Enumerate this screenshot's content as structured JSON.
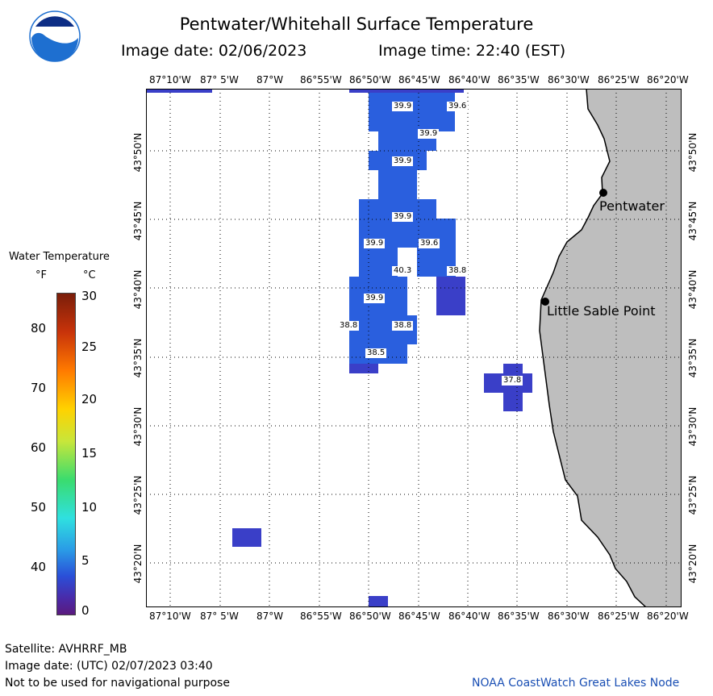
{
  "title": "Pentwater/Whitehall Surface Temperature",
  "image_date_label": "Image date: 02/06/2023",
  "image_time_label": "Image time: 22:40 (EST)",
  "lon_labels": [
    "87°10'W",
    "87° 5'W",
    "87°W",
    "86°55'W",
    "86°50'W",
    "86°45'W",
    "86°40'W",
    "86°35'W",
    "86°30'W",
    "86°25'W",
    "86°20'W"
  ],
  "lat_labels": [
    "43°50'N",
    "43°45'N",
    "43°40'N",
    "43°35'N",
    "43°30'N",
    "43°25'N",
    "43°20'N"
  ],
  "legend": {
    "title": "Water Temperature",
    "unit_f": "°F",
    "unit_c": "°C",
    "f_ticks": [
      "80",
      "70",
      "60",
      "50",
      "40"
    ],
    "c_ticks": [
      "30",
      "25",
      "20",
      "15",
      "10",
      "5",
      "0"
    ]
  },
  "places": {
    "pentwater": "Pentwater",
    "little_sable": "Little Sable Point"
  },
  "temperatures": [
    {
      "id": "t1",
      "label": "39.9"
    },
    {
      "id": "t2",
      "label": "39.6"
    },
    {
      "id": "t3",
      "label": "39.9"
    },
    {
      "id": "t4",
      "label": "39.9"
    },
    {
      "id": "t5",
      "label": "39.9"
    },
    {
      "id": "t6",
      "label": "39.9"
    },
    {
      "id": "t7",
      "label": "39.6"
    },
    {
      "id": "t8",
      "label": "40.3"
    },
    {
      "id": "t9",
      "label": "38.8"
    },
    {
      "id": "t10",
      "label": "39.9"
    },
    {
      "id": "t11",
      "label": "38.8"
    },
    {
      "id": "t12",
      "label": "38.8"
    },
    {
      "id": "t13",
      "label": "38.5"
    },
    {
      "id": "t14",
      "label": "37.8"
    }
  ],
  "footer": {
    "satellite": "Satellite: AVHRRF_MB",
    "utc_date": "Image date: (UTC) 02/07/2023  03:40",
    "disclaimer": "Not to be used for navigational purpose",
    "node": "NOAA CoastWatch Great Lakes Node"
  },
  "colors": {
    "water_blue": "#2a5fde",
    "water_purple": "#3a3fc8",
    "land": "#bebebe",
    "logo_blue": "#1e6fd0"
  }
}
